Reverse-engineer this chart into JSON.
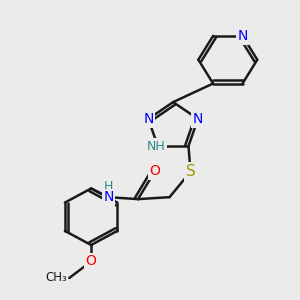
{
  "bg_color": "#ebebeb",
  "bond_color": "#1a1a1a",
  "bond_width": 1.8,
  "atom_colors": {
    "N": "#0000FF",
    "NH_teal": "#2e8b8b",
    "H_teal": "#2e8b8b",
    "S": "#9b9b00",
    "O": "#FF0000",
    "C": "#1a1a1a"
  },
  "font_size": 10
}
